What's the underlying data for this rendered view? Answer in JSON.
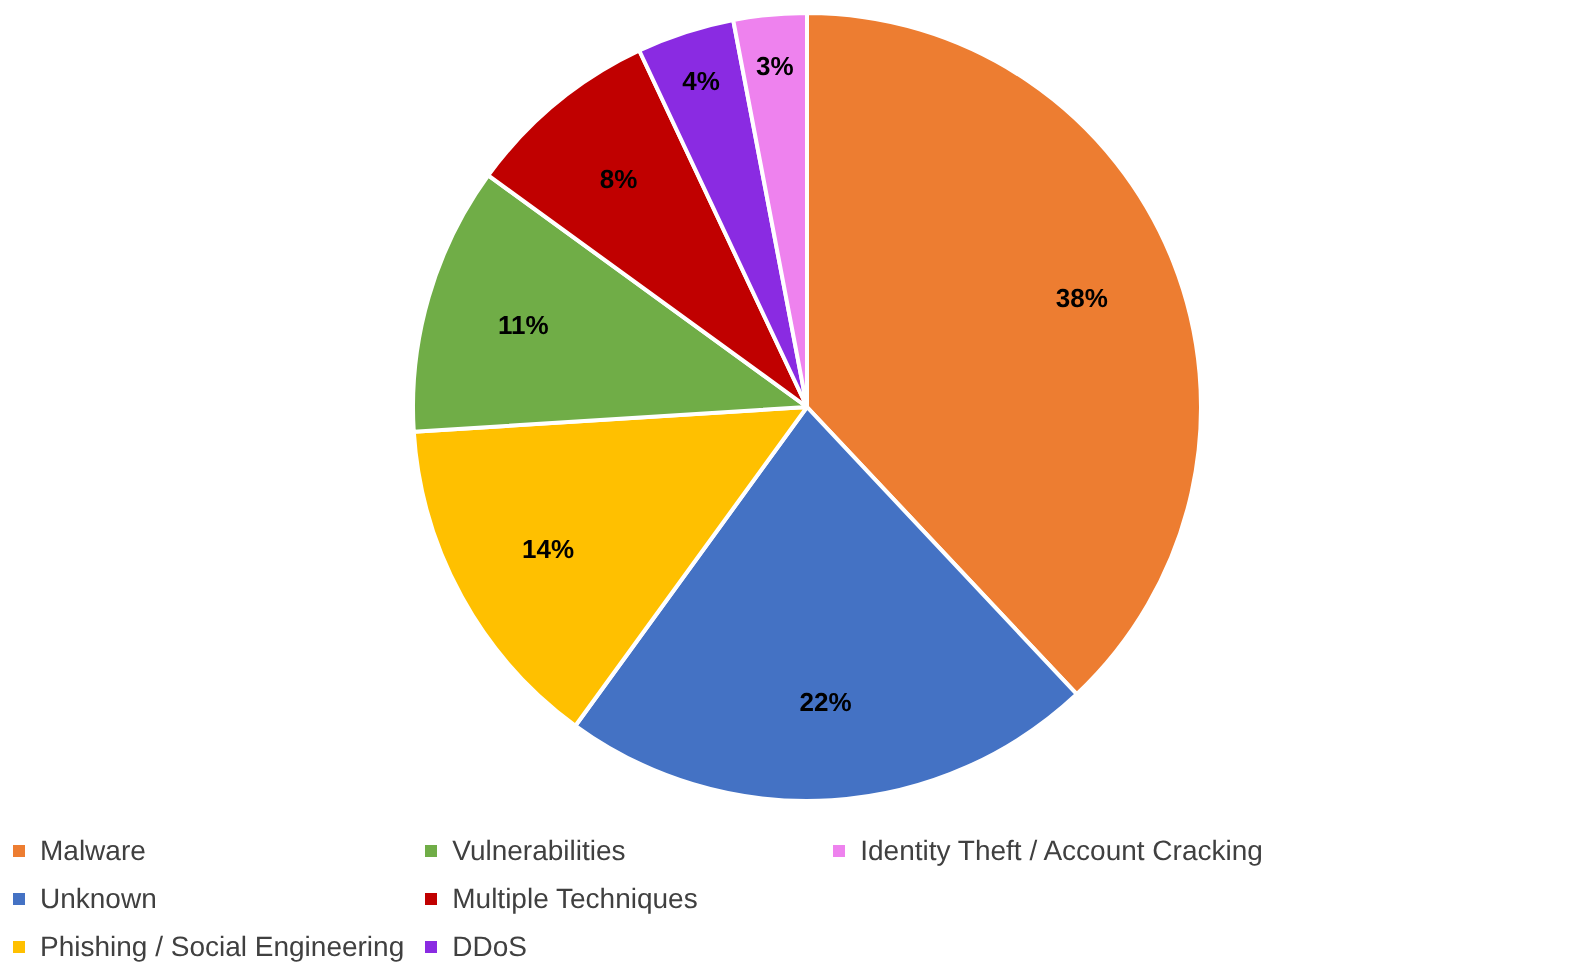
{
  "chart_data": {
    "type": "pie",
    "categories": [
      "Malware",
      "Unknown",
      "Phishing / Social Engineering",
      "Vulnerabilities",
      "Multiple Techniques",
      "DDoS",
      "Identity Theft / Account Cracking"
    ],
    "values": [
      38,
      22,
      14,
      11,
      8,
      4,
      3
    ],
    "value_labels": [
      "38%",
      "22%",
      "14%",
      "11%",
      "8%",
      "4%",
      "3%"
    ],
    "colors": [
      "#ed7d31",
      "#4472c4",
      "#ffc000",
      "#70ad47",
      "#c00000",
      "#8a2be2",
      "#ee82ee"
    ],
    "legend": "bottom"
  }
}
